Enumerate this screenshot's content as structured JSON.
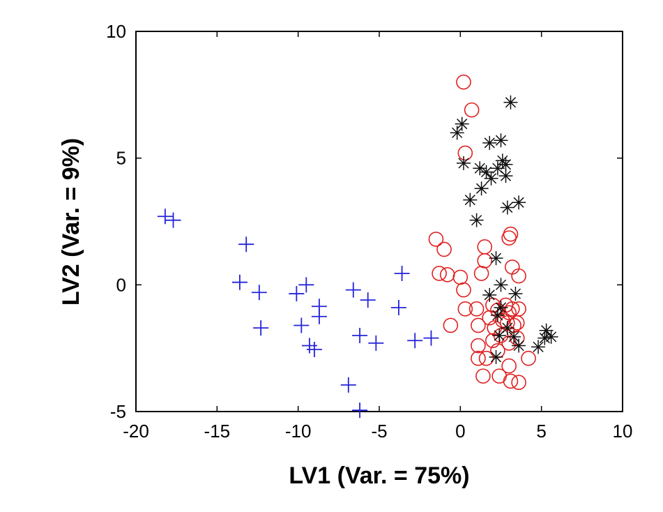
{
  "chart_data": {
    "type": "scatter",
    "title": "",
    "xlabel": "LV1 (Var. = 75%)",
    "ylabel": "LV2 (Var. = 9%)",
    "xlim": [
      -20,
      10
    ],
    "ylim": [
      -5,
      10
    ],
    "xticks": [
      -20,
      -15,
      -10,
      -5,
      0,
      5,
      10
    ],
    "yticks": [
      -5,
      0,
      5,
      10
    ],
    "grid": false,
    "legend": "none",
    "series": [
      {
        "marker": "plus",
        "color": "#2323d8",
        "points": [
          [
            -18.2,
            2.7
          ],
          [
            -17.7,
            2.55
          ],
          [
            -13.2,
            1.6
          ],
          [
            -13.6,
            0.1
          ],
          [
            -12.4,
            -0.3
          ],
          [
            -12.3,
            -1.7
          ],
          [
            -9.5,
            0.0
          ],
          [
            -10.1,
            -0.35
          ],
          [
            -9.8,
            -1.6
          ],
          [
            -9.3,
            -2.4
          ],
          [
            -9.0,
            -2.55
          ],
          [
            -8.7,
            -0.85
          ],
          [
            -8.7,
            -1.25
          ],
          [
            -6.6,
            -0.2
          ],
          [
            -5.7,
            -0.6
          ],
          [
            -6.2,
            -2.0
          ],
          [
            -5.2,
            -2.3
          ],
          [
            -3.6,
            0.45
          ],
          [
            -3.8,
            -0.9
          ],
          [
            -2.8,
            -2.2
          ],
          [
            -1.8,
            -2.1
          ],
          [
            -6.9,
            -3.95
          ],
          [
            -6.2,
            -4.95
          ]
        ]
      },
      {
        "marker": "circle",
        "color": "#e02020",
        "points": [
          [
            0.2,
            8.0
          ],
          [
            0.7,
            6.9
          ],
          [
            0.3,
            5.2
          ],
          [
            -1.5,
            1.8
          ],
          [
            -1.0,
            1.4
          ],
          [
            -1.3,
            0.45
          ],
          [
            -0.8,
            0.4
          ],
          [
            0.0,
            0.3
          ],
          [
            0.2,
            -0.2
          ],
          [
            0.3,
            -0.95
          ],
          [
            -0.6,
            -1.6
          ],
          [
            1.0,
            -0.95
          ],
          [
            1.1,
            -1.6
          ],
          [
            1.1,
            -2.4
          ],
          [
            1.1,
            -2.9
          ],
          [
            1.6,
            -2.9
          ],
          [
            1.4,
            -3.6
          ],
          [
            1.5,
            1.5
          ],
          [
            1.3,
            0.45
          ],
          [
            1.5,
            0.95
          ],
          [
            2.0,
            -0.8
          ],
          [
            1.8,
            -1.3
          ],
          [
            2.1,
            -1.7
          ],
          [
            2.0,
            -2.2
          ],
          [
            2.3,
            -2.6
          ],
          [
            2.4,
            -3.6
          ],
          [
            2.3,
            -1.0
          ],
          [
            2.6,
            -1.4
          ],
          [
            2.5,
            -2.0
          ],
          [
            2.8,
            -0.8
          ],
          [
            2.9,
            -1.5
          ],
          [
            3.0,
            -1.1
          ],
          [
            3.0,
            -2.3
          ],
          [
            3.2,
            -0.95
          ],
          [
            3.3,
            -1.6
          ],
          [
            3.6,
            -0.95
          ],
          [
            3.5,
            -1.5
          ],
          [
            3.5,
            -2.1
          ],
          [
            3.0,
            -3.2
          ],
          [
            3.1,
            -3.8
          ],
          [
            3.6,
            -3.85
          ],
          [
            4.2,
            -2.9
          ],
          [
            3.2,
            0.7
          ],
          [
            3.6,
            0.35
          ],
          [
            3.0,
            1.85
          ],
          [
            3.1,
            2.0
          ]
        ]
      },
      {
        "marker": "asterisk",
        "color": "#111111",
        "points": [
          [
            3.1,
            7.2
          ],
          [
            0.1,
            6.35
          ],
          [
            -0.2,
            6.0
          ],
          [
            1.8,
            5.6
          ],
          [
            2.5,
            5.7
          ],
          [
            0.2,
            4.8
          ],
          [
            1.2,
            4.6
          ],
          [
            1.6,
            4.45
          ],
          [
            2.3,
            4.6
          ],
          [
            2.6,
            4.9
          ],
          [
            2.8,
            4.75
          ],
          [
            2.8,
            4.3
          ],
          [
            1.9,
            4.2
          ],
          [
            1.3,
            3.8
          ],
          [
            0.6,
            3.35
          ],
          [
            3.6,
            3.25
          ],
          [
            2.9,
            3.05
          ],
          [
            1.0,
            2.55
          ],
          [
            2.2,
            1.05
          ],
          [
            2.5,
            0.0
          ],
          [
            1.8,
            -0.4
          ],
          [
            3.4,
            -0.35
          ],
          [
            2.5,
            -0.9
          ],
          [
            2.3,
            -1.2
          ],
          [
            2.9,
            -1.7
          ],
          [
            2.4,
            -2.0
          ],
          [
            3.3,
            -2.05
          ],
          [
            3.6,
            -2.4
          ],
          [
            4.8,
            -2.45
          ],
          [
            5.3,
            -1.8
          ],
          [
            5.6,
            -2.05
          ],
          [
            5.2,
            -2.1
          ],
          [
            2.2,
            -2.85
          ]
        ]
      }
    ]
  }
}
